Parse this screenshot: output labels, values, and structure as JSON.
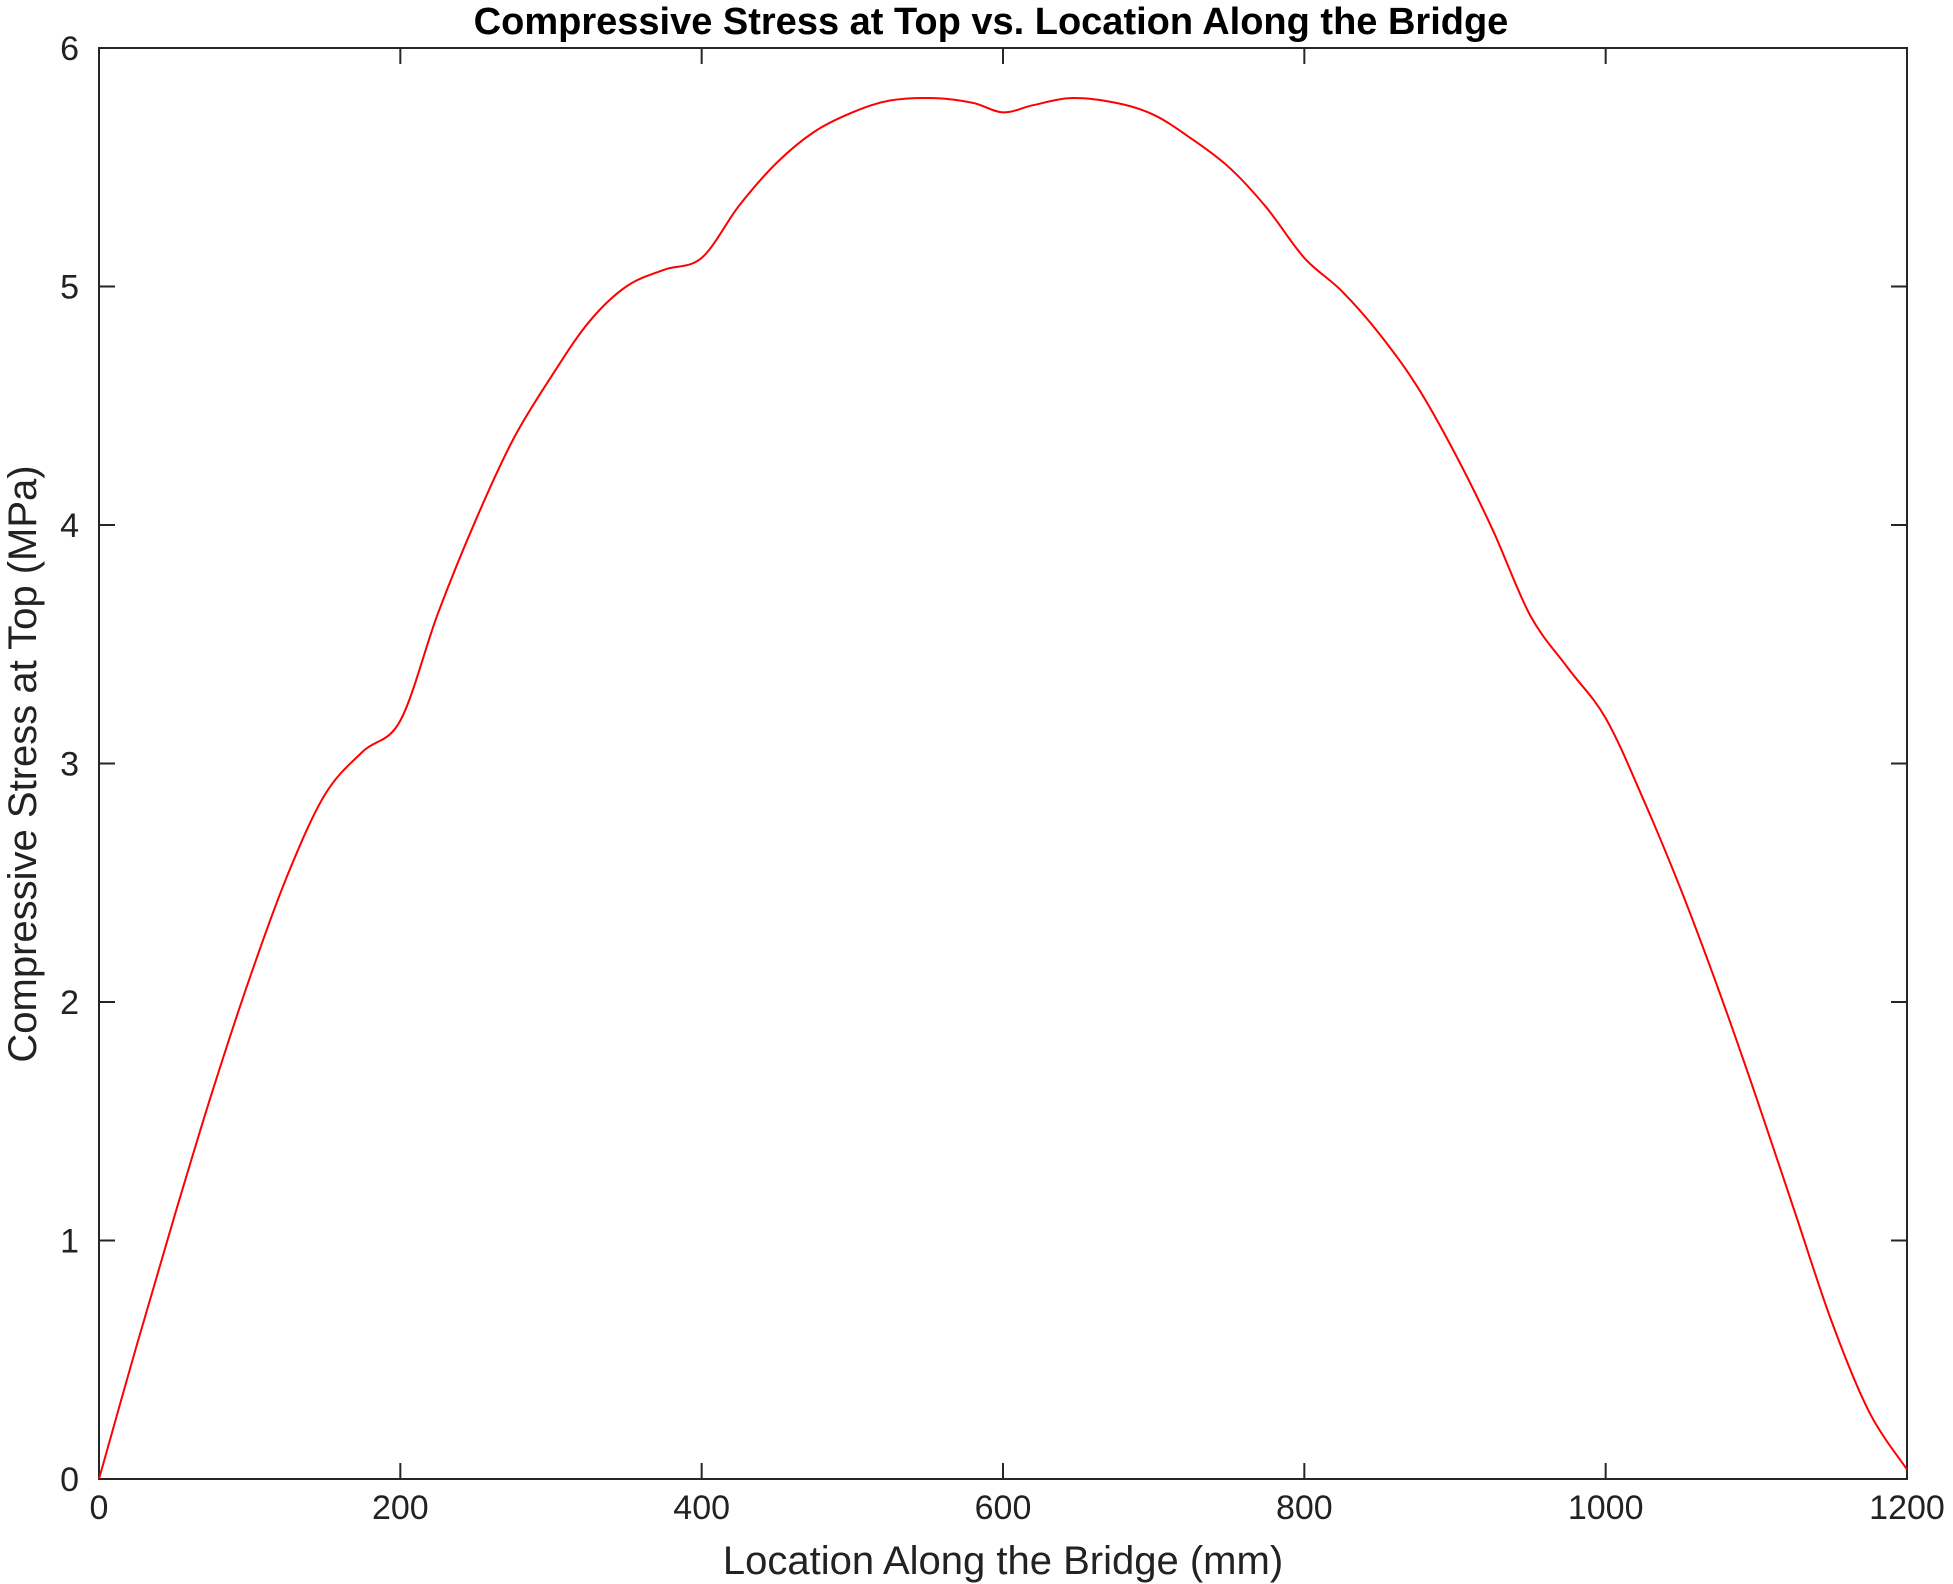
{
  "chart_data": {
    "type": "line",
    "title": "Compressive Stress at Top vs. Location Along the Bridge",
    "xlabel": "Location Along the Bridge (mm)",
    "ylabel": "Compressive Stress at Top (MPa)",
    "xlim": [
      0,
      1200
    ],
    "ylim": [
      0,
      6
    ],
    "xticks": [
      0,
      200,
      400,
      600,
      800,
      1000,
      1200
    ],
    "yticks": [
      0,
      1,
      2,
      3,
      4,
      5,
      6
    ],
    "grid": false,
    "legend": "none",
    "series": [
      {
        "color": "#ff0000",
        "x": [
          0,
          25,
          50,
          75,
          100,
          125,
          150,
          175,
          200,
          225,
          250,
          275,
          300,
          325,
          350,
          375,
          400,
          425,
          450,
          475,
          500,
          525,
          555,
          580,
          600,
          620,
          645,
          675,
          700,
          725,
          750,
          775,
          800,
          825,
          850,
          875,
          900,
          925,
          950,
          975,
          1000,
          1025,
          1050,
          1075,
          1100,
          1125,
          1150,
          1175,
          1200
        ],
        "y": [
          0,
          0.56,
          1.1,
          1.62,
          2.1,
          2.53,
          2.87,
          3.05,
          3.18,
          3.63,
          4.02,
          4.36,
          4.62,
          4.85,
          5.0,
          5.07,
          5.12,
          5.34,
          5.52,
          5.65,
          5.73,
          5.78,
          5.79,
          5.77,
          5.73,
          5.76,
          5.79,
          5.77,
          5.72,
          5.62,
          5.5,
          5.33,
          5.12,
          4.98,
          4.8,
          4.58,
          4.3,
          3.98,
          3.62,
          3.4,
          3.19,
          2.85,
          2.47,
          2.05,
          1.6,
          1.13,
          0.66,
          0.28,
          0.04
        ]
      }
    ]
  }
}
